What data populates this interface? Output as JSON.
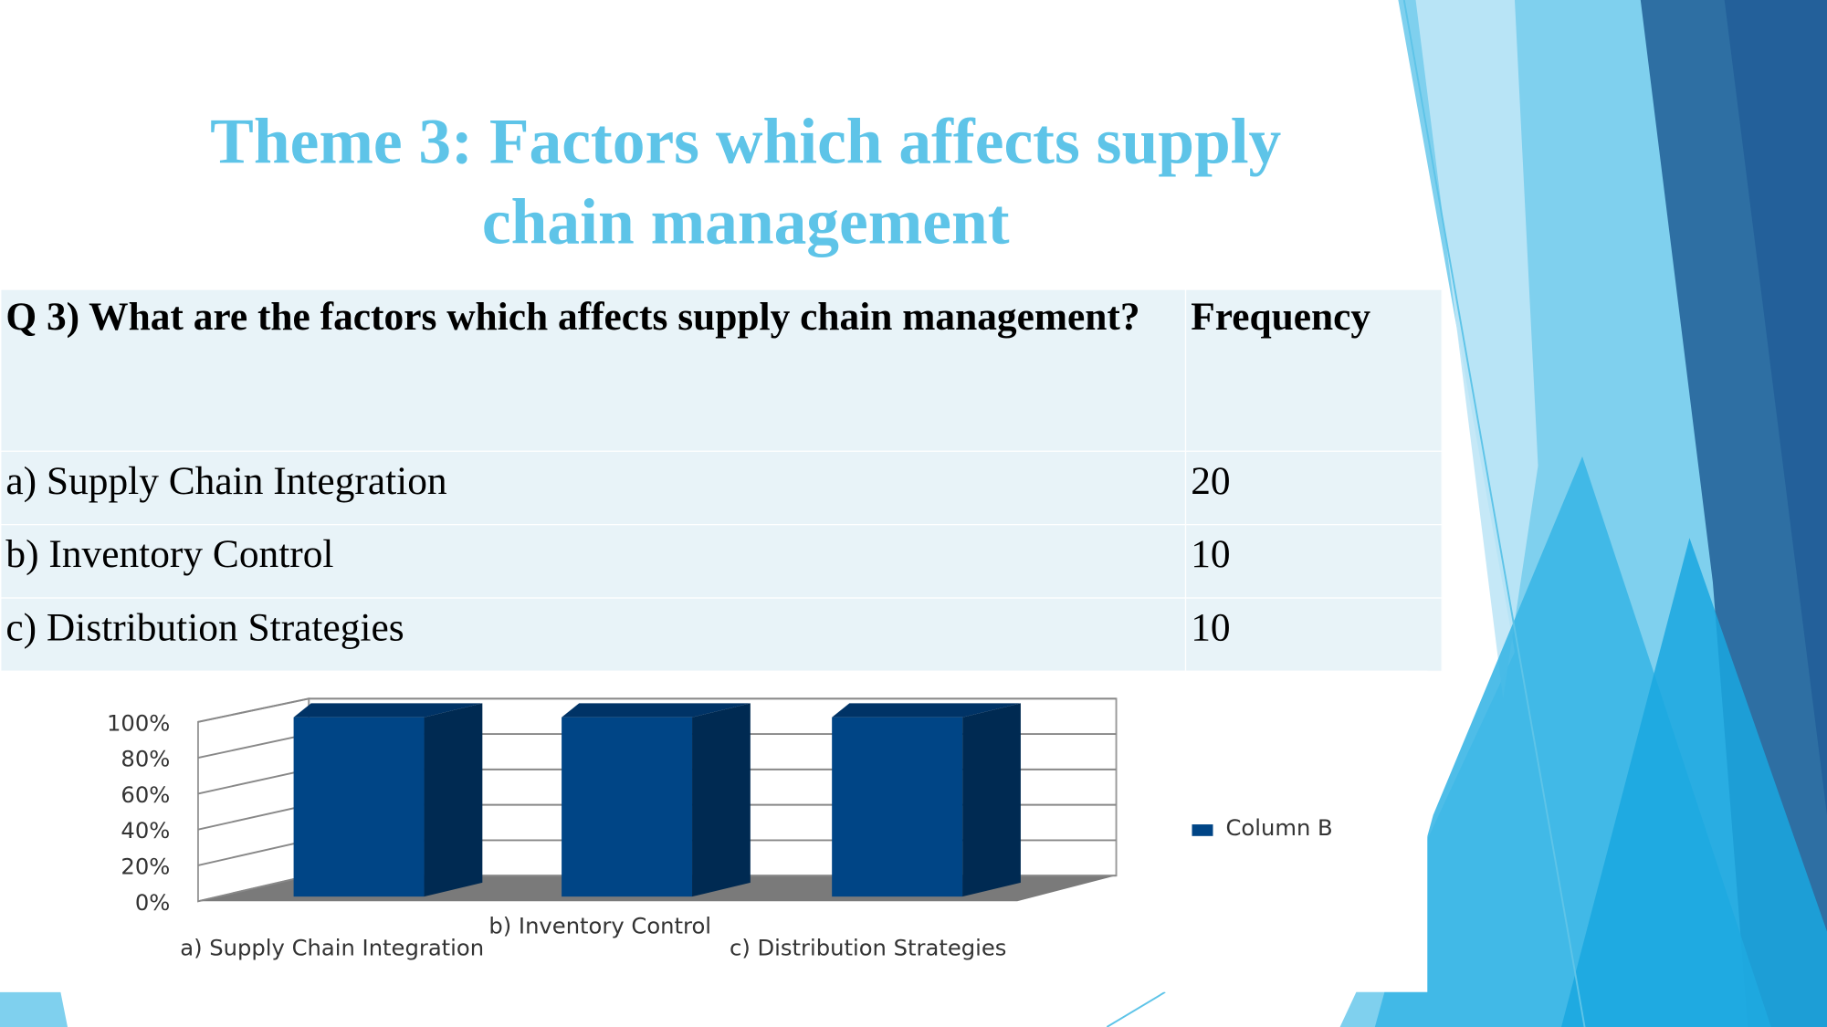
{
  "title": "Theme 3: Factors which affects supply chain management",
  "table": {
    "header": [
      "Q 3) What are the factors which affects supply chain management?",
      "Frequency"
    ],
    "rows": [
      [
        "a) Supply Chain Integration",
        20
      ],
      [
        "b) Inventory Control",
        10
      ],
      [
        "c) Distribution Strategies",
        10
      ]
    ]
  },
  "chart_data": {
    "type": "bar",
    "categories": [
      "a) Supply Chain Integration",
      "b) Inventory Control",
      "c) Distribution Strategies"
    ],
    "series": [
      {
        "name": "Column B",
        "color": "#004586",
        "values": [
          100,
          100,
          100
        ]
      }
    ],
    "ylim": [
      0,
      100
    ],
    "yticks": [
      {
        "value": 0,
        "label": "0%"
      },
      {
        "value": 20,
        "label": "20%"
      },
      {
        "value": 40,
        "label": "40%"
      },
      {
        "value": 60,
        "label": "60%"
      },
      {
        "value": 80,
        "label": "80%"
      },
      {
        "value": 100,
        "label": "100%"
      }
    ],
    "grid": true,
    "legend": "right"
  }
}
